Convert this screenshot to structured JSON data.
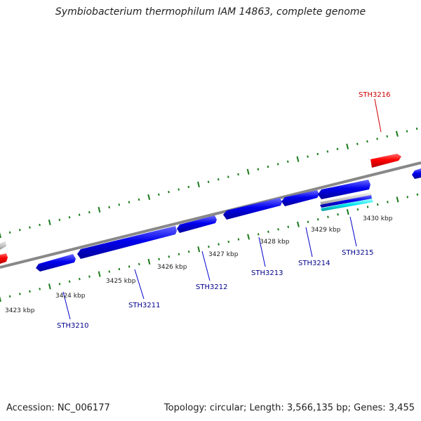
{
  "title": "Symbiobacterium thermophilum IAM 14863, complete genome",
  "footer": {
    "accession": "Accession: NC_006177",
    "summary": "Topology: circular; Length: 3,566,135 bp; Genes: 3,455"
  },
  "colors": {
    "forward_gene": "#ff0000",
    "reverse_gene": "#0000ee",
    "rna_gene": "#00e5ee",
    "other_gene": "#c8c8c8",
    "backbone": "#888888",
    "ticks": "#1a7a1a",
    "label_blue": "#00008b",
    "label_red": "#cc0000"
  },
  "kbp_labels": [
    "3423 kbp",
    "3424 kbp",
    "3425 kbp",
    "3426 kbp",
    "3427 kbp",
    "3428 kbp",
    "3429 kbp",
    "3430 kbp"
  ],
  "gene_labels": [
    "STH3210",
    "STH3211",
    "STH3212",
    "STH3213",
    "STH3214",
    "STH3215",
    "STH3216"
  ]
}
